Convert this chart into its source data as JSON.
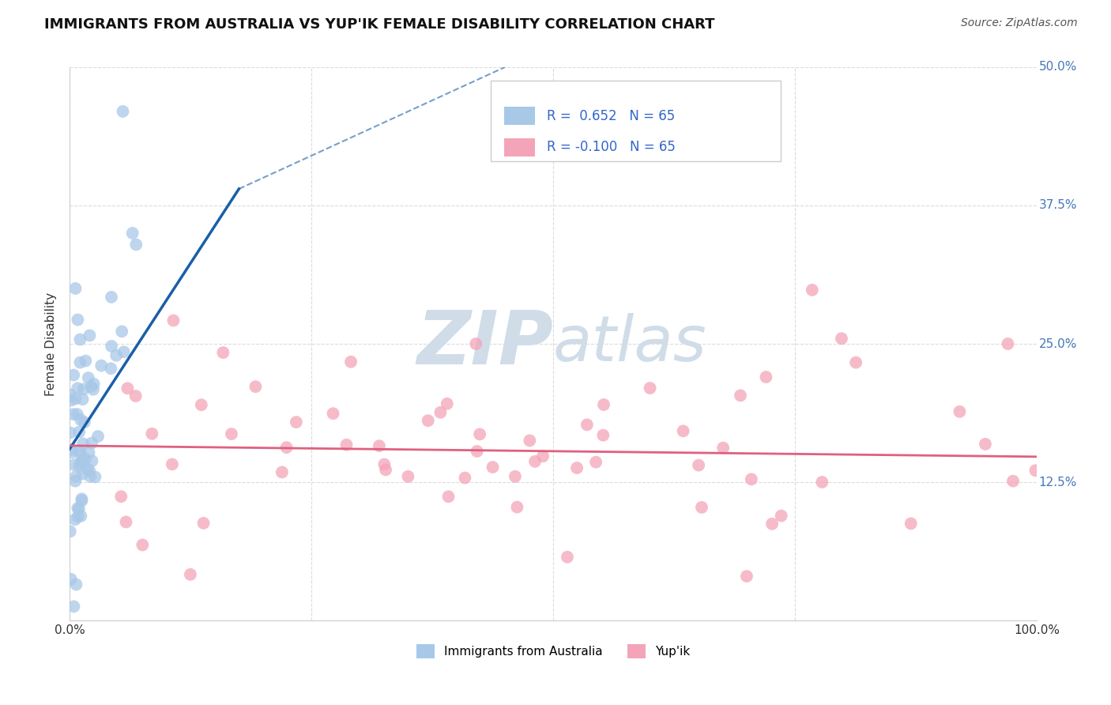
{
  "title": "IMMIGRANTS FROM AUSTRALIA VS YUP'IK FEMALE DISABILITY CORRELATION CHART",
  "source": "Source: ZipAtlas.com",
  "ylabel": "Female Disability",
  "x_min": 0.0,
  "x_max": 1.0,
  "y_min": 0.0,
  "y_max": 0.5,
  "x_ticks": [
    0.0,
    0.25,
    0.5,
    0.75,
    1.0
  ],
  "x_tick_labels_left": [
    "0.0%",
    "",
    "",
    "",
    "100.0%"
  ],
  "y_ticks": [
    0.0,
    0.125,
    0.25,
    0.375,
    0.5
  ],
  "y_tick_labels_right": [
    "",
    "12.5%",
    "25.0%",
    "37.5%",
    "50.0%"
  ],
  "legend_label1": "Immigrants from Australia",
  "legend_label2": "Yup'ik",
  "color_blue": "#a8c8e8",
  "color_pink": "#f4a4b8",
  "line_blue": "#1a5fa8",
  "line_pink": "#e06080",
  "watermark_color": "#d0dde8",
  "background_color": "#ffffff",
  "grid_color": "#cccccc",
  "title_color": "#111111",
  "source_color": "#555555",
  "ytick_color": "#4477bb",
  "xtick_color": "#333333",
  "legend_text_color": "#3366cc",
  "blue_r": "0.652",
  "pink_r": "-0.100",
  "n": "65"
}
